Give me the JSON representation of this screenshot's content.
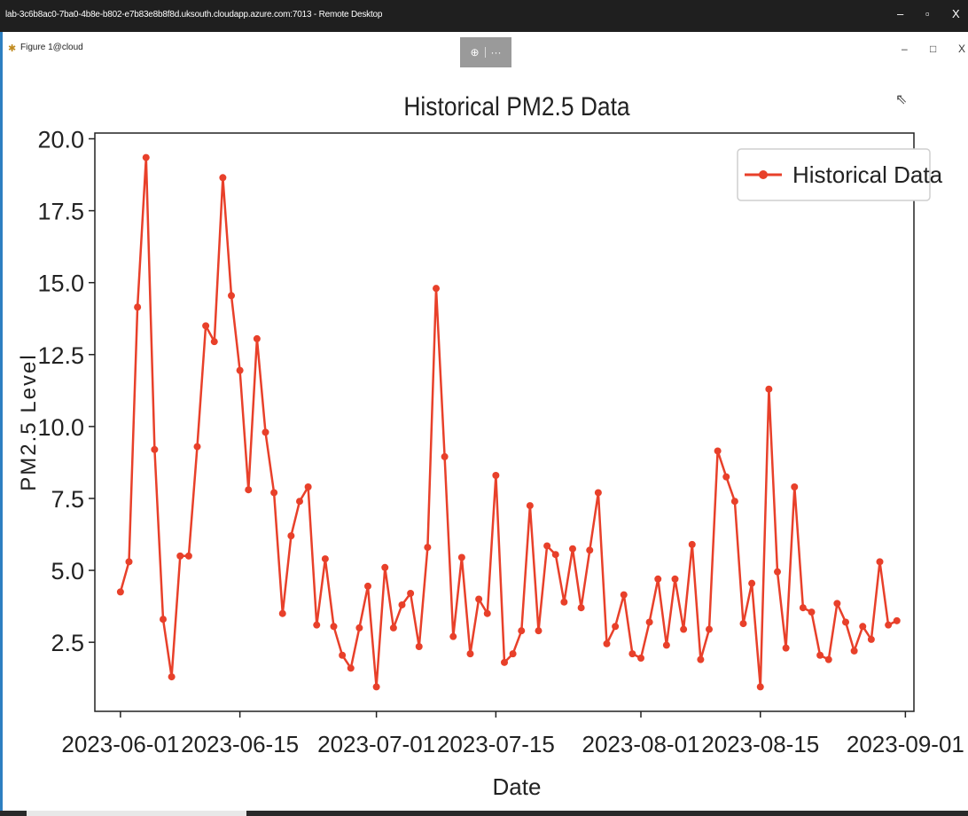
{
  "window": {
    "title": "lab-3c6b8ac0-7ba0-4b8e-b802-e7b83e8b8f8d.uksouth.cloudapp.azure.com:7013 - Remote Desktop",
    "minimize": "–",
    "restore": "▫",
    "close": "X"
  },
  "figure_window": {
    "title": "Figure 1@cloud",
    "zoom_icon": "⊕",
    "more_icon": "···",
    "minimize": "–",
    "maximize": "□",
    "close": "X"
  },
  "colors": {
    "line": "#e8402a",
    "axis": "#222222",
    "rdp_bar": "#1f1f1f"
  },
  "chart_data": {
    "type": "line",
    "title": "Historical PM2.5 Data",
    "xlabel": "Date",
    "ylabel": "PM2.5 Level",
    "legend_position": "top-right",
    "grid": false,
    "xlim": [
      "2023-05-29",
      "2023-09-02"
    ],
    "ylim": [
      0.1,
      20.2
    ],
    "x_ticks": [
      "2023-06-01",
      "2023-06-15",
      "2023-07-01",
      "2023-07-15",
      "2023-08-01",
      "2023-08-15",
      "2023-09-01"
    ],
    "y_ticks": [
      2.5,
      5.0,
      7.5,
      10.0,
      12.5,
      15.0,
      17.5,
      20.0
    ],
    "series": [
      {
        "name": "Historical Data",
        "x_start": "2023-06-01",
        "x_step_days": 1,
        "values": [
          4.25,
          5.3,
          14.15,
          19.35,
          9.2,
          3.3,
          1.3,
          5.5,
          5.5,
          9.3,
          13.5,
          12.95,
          18.65,
          14.55,
          11.95,
          7.8,
          13.05,
          9.8,
          7.7,
          3.5,
          6.2,
          7.4,
          7.9,
          3.1,
          5.4,
          3.05,
          2.05,
          1.6,
          3.0,
          4.45,
          0.95,
          5.1,
          3.0,
          3.8,
          4.2,
          2.35,
          5.8,
          14.8,
          8.95,
          2.7,
          5.45,
          2.1,
          4.0,
          3.5,
          8.3,
          1.8,
          2.1,
          2.9,
          7.25,
          2.9,
          5.85,
          5.55,
          3.9,
          5.75,
          3.7,
          5.7,
          7.7,
          2.45,
          3.05,
          4.15,
          2.1,
          1.95,
          3.2,
          4.7,
          2.4,
          4.7,
          2.95,
          5.9,
          1.9,
          2.95,
          9.15,
          8.25,
          7.4,
          3.15,
          4.55,
          0.95,
          11.3,
          4.95,
          2.3,
          7.9,
          3.7,
          3.55,
          2.05,
          1.9,
          3.85,
          3.2,
          2.2,
          3.05,
          2.6,
          5.3,
          3.1,
          3.25
        ]
      }
    ]
  }
}
